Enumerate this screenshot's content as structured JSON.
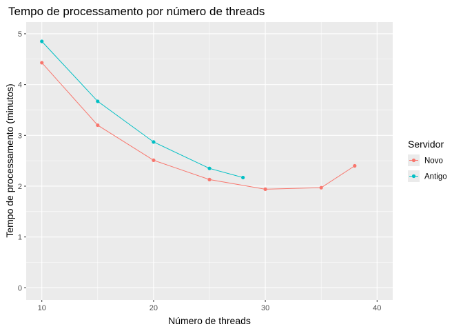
{
  "chart_data": {
    "type": "line",
    "title": "Tempo de processamento por número de threads",
    "xlabel": "Número de threads",
    "ylabel": "Tempo de processamento (minutos)",
    "xlim": [
      8.6,
      41.4
    ],
    "ylim": [
      -0.24,
      5.23
    ],
    "x_ticks": [
      10,
      20,
      30,
      40
    ],
    "y_ticks": [
      0,
      1,
      2,
      3,
      4,
      5
    ],
    "grid": true,
    "legend_position": "right",
    "legend_title": "Servidor",
    "series": [
      {
        "name": "Novo",
        "color": "#F8766D",
        "x": [
          10,
          15,
          20,
          25,
          30,
          35,
          38
        ],
        "y": [
          4.43,
          3.2,
          2.51,
          2.13,
          1.94,
          1.97,
          2.4
        ]
      },
      {
        "name": "Antigo",
        "color": "#00BFC4",
        "x": [
          10,
          15,
          20,
          25,
          28
        ],
        "y": [
          4.85,
          3.67,
          2.87,
          2.35,
          2.17
        ]
      }
    ]
  }
}
